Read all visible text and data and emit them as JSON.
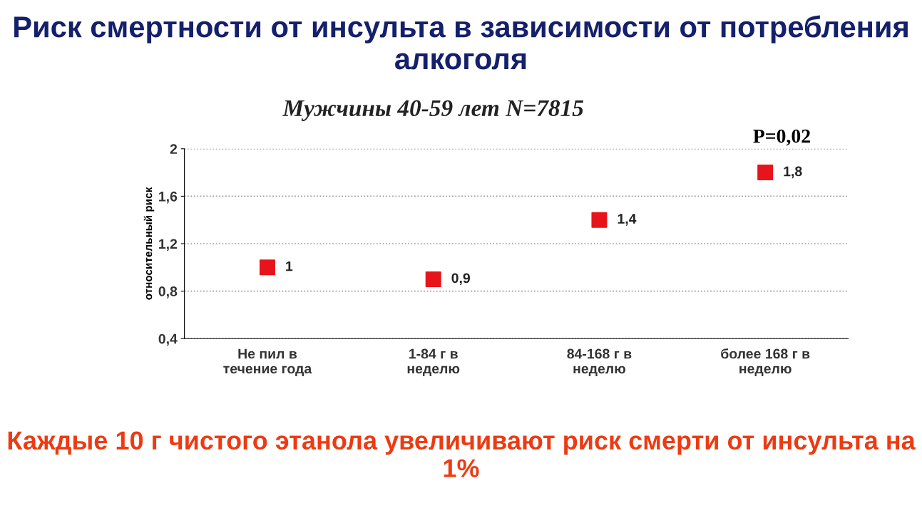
{
  "chart_data": {
    "type": "scatter",
    "title": "Риск смертности от инсульта в зависимости от потребления алкоголя",
    "subtitle": "Мужчины 40-59 лет N=7815",
    "ylabel": "относительный риск",
    "categories": [
      "Не пил в\nтечение года",
      "1-84 г в\nнеделю",
      "84-168 г в\nнеделю",
      "более 168 г в\nнеделю"
    ],
    "series": [
      {
        "color": "#e8141b",
        "values": [
          1,
          0.9,
          1.4,
          1.8
        ],
        "value_labels": [
          "1",
          "0,9",
          "1,4",
          "1,8"
        ]
      }
    ],
    "marker": "square",
    "grid": "y",
    "legend": false,
    "ylim": [
      0.4,
      2
    ],
    "yticks": [
      {
        "value": 0.4,
        "label": "0,4"
      },
      {
        "value": 0.8,
        "label": "0,8"
      },
      {
        "value": 1.2,
        "label": "1,2"
      },
      {
        "value": 1.6,
        "label": "1,6"
      },
      {
        "value": 2,
        "label": "2"
      }
    ],
    "annotations": [
      "P=0,02",
      "Каждые 10 г чистого этанола увеличивают риск смерти от инсульта на 1%"
    ]
  }
}
